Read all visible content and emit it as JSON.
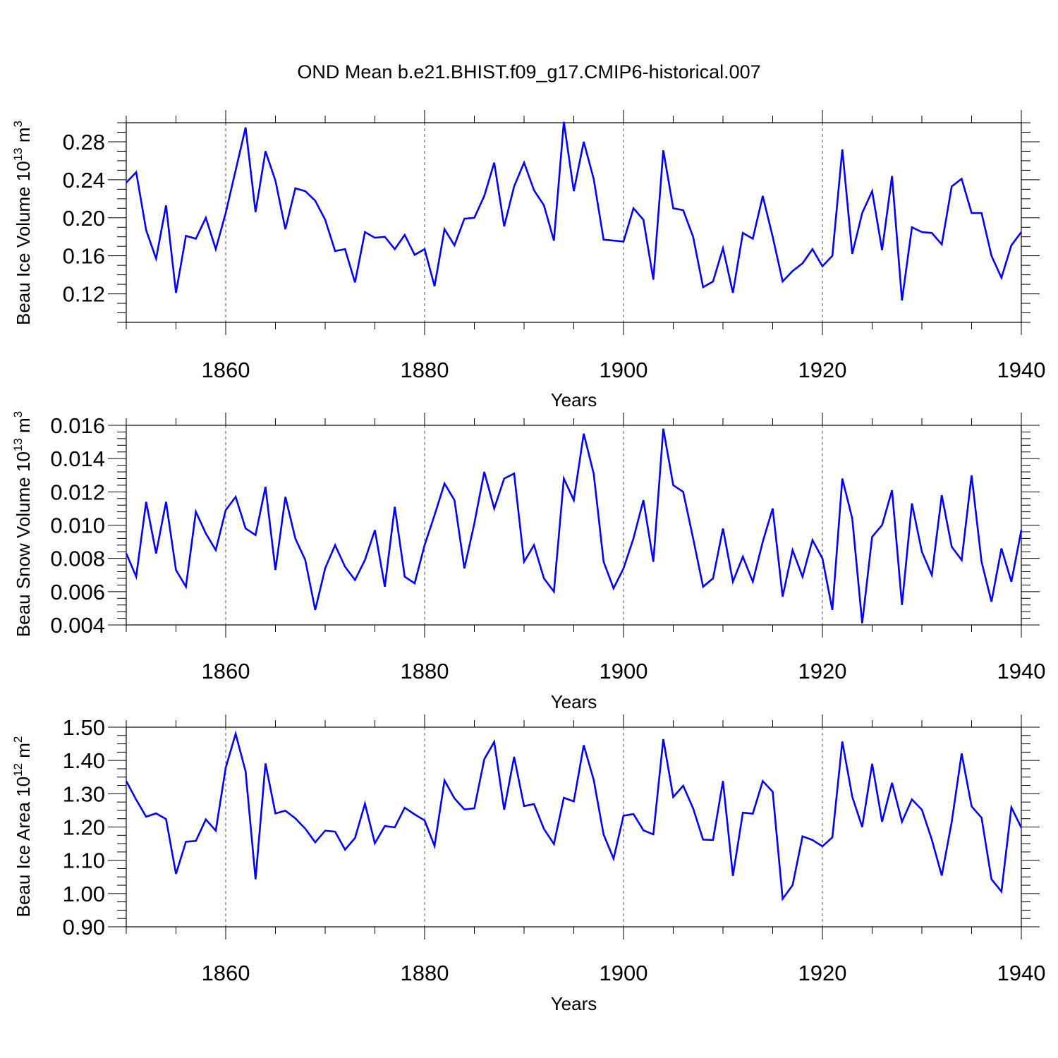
{
  "title": "OND Mean b.e21.BHIST.f09_g17.CMIP6-historical.007",
  "colors": {
    "series": "#0000ff",
    "axis": "#000000",
    "grid": "#555555"
  },
  "chart_data": [
    {
      "type": "line",
      "ylabel": "Beau Ice Volume 10",
      "ylabel_exp": "13",
      "ylabel_unit": " m",
      "ylabel_unit_exp": "3",
      "xlabel": "Years",
      "xlim": [
        1850,
        1940
      ],
      "ylim": [
        0.09,
        0.3
      ],
      "xticks": [
        1860,
        1880,
        1900,
        1920,
        1940
      ],
      "xtick_labels": [
        "1860",
        "1880",
        "1900",
        "1920",
        "1940"
      ],
      "yticks": [
        0.12,
        0.16,
        0.2,
        0.24,
        0.28
      ],
      "ytick_labels": [
        "0.12",
        "0.16",
        "0.20",
        "0.24",
        "0.28"
      ],
      "x_start": 1850,
      "values": [
        0.237,
        0.248,
        0.187,
        0.157,
        0.213,
        0.121,
        0.181,
        0.178,
        0.2,
        0.167,
        0.205,
        0.25,
        0.295,
        0.206,
        0.27,
        0.239,
        0.188,
        0.231,
        0.228,
        0.218,
        0.198,
        0.165,
        0.167,
        0.132,
        0.185,
        0.179,
        0.18,
        0.167,
        0.182,
        0.161,
        0.167,
        0.128,
        0.188,
        0.171,
        0.199,
        0.2,
        0.223,
        0.258,
        0.191,
        0.233,
        0.258,
        0.229,
        0.213,
        0.176,
        0.301,
        0.228,
        0.28,
        0.241,
        0.177,
        0.176,
        0.175,
        0.21,
        0.198,
        0.135,
        0.271,
        0.21,
        0.208,
        0.18,
        0.127,
        0.133,
        0.168,
        0.121,
        0.184,
        0.178,
        0.223,
        0.18,
        0.133,
        0.144,
        0.152,
        0.167,
        0.149,
        0.16,
        0.272,
        0.162,
        0.205,
        0.228,
        0.166,
        0.244,
        0.113,
        0.19,
        0.185,
        0.184,
        0.172,
        0.233,
        0.241,
        0.205,
        0.205,
        0.16,
        0.137,
        0.171,
        0.185
      ]
    },
    {
      "type": "line",
      "ylabel": "Beau Snow Volume 10",
      "ylabel_exp": "13",
      "ylabel_unit": " m",
      "ylabel_unit_exp": "3",
      "xlabel": "Years",
      "xlim": [
        1850,
        1940
      ],
      "ylim": [
        0.004,
        0.016
      ],
      "xticks": [
        1860,
        1880,
        1900,
        1920,
        1940
      ],
      "xtick_labels": [
        "1860",
        "1880",
        "1900",
        "1920",
        "1940"
      ],
      "yticks": [
        0.004,
        0.006,
        0.008,
        0.01,
        0.012,
        0.014,
        0.016
      ],
      "ytick_labels": [
        "0.004",
        "0.006",
        "0.008",
        "0.010",
        "0.012",
        "0.014",
        "0.016"
      ],
      "x_start": 1850,
      "values": [
        0.0083,
        0.0069,
        0.0114,
        0.0083,
        0.0114,
        0.0073,
        0.0063,
        0.0108,
        0.0095,
        0.0085,
        0.0109,
        0.0117,
        0.0098,
        0.0094,
        0.0123,
        0.0073,
        0.0117,
        0.0092,
        0.0079,
        0.0049,
        0.0074,
        0.0088,
        0.0075,
        0.0067,
        0.0079,
        0.0097,
        0.0063,
        0.0111,
        0.0069,
        0.0065,
        0.0088,
        0.0106,
        0.0125,
        0.0115,
        0.0074,
        0.0101,
        0.0132,
        0.011,
        0.0128,
        0.0131,
        0.0078,
        0.0088,
        0.0068,
        0.006,
        0.0128,
        0.0115,
        0.0155,
        0.0131,
        0.0078,
        0.0062,
        0.0074,
        0.0092,
        0.0115,
        0.0078,
        0.0158,
        0.0124,
        0.012,
        0.0092,
        0.0063,
        0.0068,
        0.0098,
        0.0066,
        0.0081,
        0.0066,
        0.009,
        0.011,
        0.0057,
        0.0085,
        0.0069,
        0.0091,
        0.008,
        0.0049,
        0.0128,
        0.0104,
        0.0041,
        0.0093,
        0.01,
        0.0121,
        0.0052,
        0.0113,
        0.0084,
        0.007,
        0.0118,
        0.0087,
        0.0079,
        0.013,
        0.0078,
        0.0054,
        0.0086,
        0.0066,
        0.0097
      ]
    },
    {
      "type": "line",
      "ylabel": "Beau Ice Area 10",
      "ylabel_exp": "12",
      "ylabel_unit": " m",
      "ylabel_unit_exp": "2",
      "xlabel": "Years",
      "xlim": [
        1850,
        1940
      ],
      "ylim": [
        0.9,
        1.5
      ],
      "xticks": [
        1860,
        1880,
        1900,
        1920,
        1940
      ],
      "xtick_labels": [
        "1860",
        "1880",
        "1900",
        "1920",
        "1940"
      ],
      "yticks": [
        0.9,
        1.0,
        1.1,
        1.2,
        1.3,
        1.4,
        1.5
      ],
      "ytick_labels": [
        "0.90",
        "1.00",
        "1.10",
        "1.20",
        "1.30",
        "1.40",
        "1.50"
      ],
      "x_start": 1850,
      "values": [
        1.338,
        1.282,
        1.231,
        1.241,
        1.224,
        1.059,
        1.156,
        1.158,
        1.223,
        1.189,
        1.378,
        1.48,
        1.367,
        1.043,
        1.391,
        1.241,
        1.249,
        1.226,
        1.195,
        1.154,
        1.189,
        1.186,
        1.132,
        1.167,
        1.27,
        1.151,
        1.203,
        1.199,
        1.258,
        1.238,
        1.22,
        1.143,
        1.34,
        1.286,
        1.253,
        1.256,
        1.404,
        1.456,
        1.252,
        1.411,
        1.263,
        1.269,
        1.194,
        1.149,
        1.288,
        1.277,
        1.446,
        1.342,
        1.177,
        1.105,
        1.234,
        1.239,
        1.19,
        1.178,
        1.464,
        1.29,
        1.324,
        1.256,
        1.162,
        1.161,
        1.338,
        1.053,
        1.243,
        1.24,
        1.338,
        1.306,
        0.984,
        1.025,
        1.172,
        1.161,
        1.142,
        1.169,
        1.457,
        1.291,
        1.2,
        1.39,
        1.216,
        1.333,
        1.216,
        1.283,
        1.252,
        1.162,
        1.054,
        1.215,
        1.421,
        1.262,
        1.228,
        1.043,
        1.006,
        1.259,
        1.198
      ]
    }
  ]
}
